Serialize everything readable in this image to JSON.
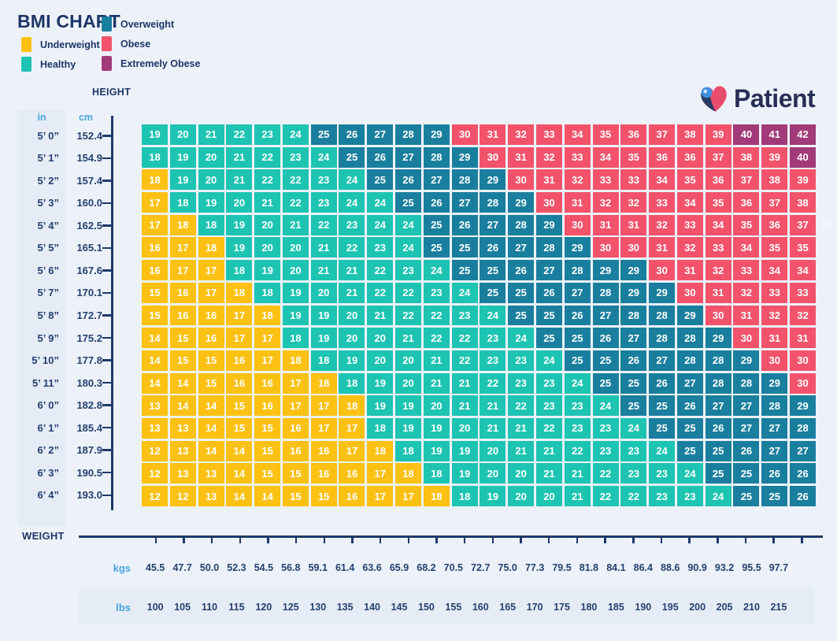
{
  "title": "BMI CHART",
  "logo": {
    "text": "Patient"
  },
  "labels": {
    "height": "HEIGHT",
    "weight": "WEIGHT",
    "in": "in",
    "cm": "cm",
    "kgs": "kgs",
    "lbs": "lbs"
  },
  "legend": [
    {
      "key": "underweight",
      "label": "Underweight",
      "color": "#fcc113"
    },
    {
      "key": "healthy",
      "label": "Healthy",
      "color": "#1dc4b2"
    },
    {
      "key": "overweight",
      "label": "Overweight",
      "color": "#1a7f9e"
    },
    {
      "key": "obese",
      "label": "Obese",
      "color": "#f2536b"
    },
    {
      "key": "extremely_obese",
      "label": "Extremely Obese",
      "color": "#a23a79"
    }
  ],
  "artifact": {
    "text": "38"
  },
  "chart_data": {
    "type": "heatmap",
    "value_name": "BMI",
    "x_axis": {
      "kgs": [
        "45.5",
        "47.7",
        "50.0",
        "52.3",
        "54.5",
        "56.8",
        "59.1",
        "61.4",
        "63.6",
        "65.9",
        "68.2",
        "70.5",
        "72.7",
        "75.0",
        "77.3",
        "79.5",
        "81.8",
        "84.1",
        "86.4",
        "88.6",
        "90.9",
        "93.2",
        "95.5",
        "97.7"
      ],
      "lbs": [
        "100",
        "105",
        "110",
        "115",
        "120",
        "125",
        "130",
        "135",
        "140",
        "145",
        "150",
        "155",
        "160",
        "165",
        "170",
        "175",
        "180",
        "185",
        "190",
        "195",
        "200",
        "205",
        "210",
        "215"
      ]
    },
    "band_order": [
      "underweight",
      "healthy",
      "overweight",
      "obese",
      "extremely_obese"
    ],
    "rows": [
      {
        "in": "5’ 0”",
        "cm": "152.4",
        "values": [
          19,
          20,
          21,
          22,
          23,
          24,
          25,
          26,
          27,
          28,
          29,
          30,
          31,
          32,
          33,
          34,
          35,
          36,
          37,
          38,
          39,
          40,
          41,
          42
        ],
        "bands": [
          0,
          6,
          5,
          10,
          3
        ]
      },
      {
        "in": "5’ 1”",
        "cm": "154.9",
        "values": [
          18,
          19,
          20,
          21,
          22,
          23,
          24,
          25,
          26,
          27,
          28,
          29,
          30,
          31,
          32,
          33,
          34,
          35,
          36,
          36,
          37,
          38,
          39,
          40
        ],
        "bands": [
          0,
          7,
          5,
          11,
          1
        ]
      },
      {
        "in": "5’ 2”",
        "cm": "157.4",
        "values": [
          18,
          19,
          20,
          21,
          22,
          22,
          23,
          24,
          25,
          26,
          27,
          28,
          29,
          30,
          31,
          32,
          33,
          33,
          34,
          35,
          36,
          37,
          38,
          39
        ],
        "bands": [
          1,
          7,
          5,
          11,
          0
        ]
      },
      {
        "in": "5’ 3”",
        "cm": "160.0",
        "values": [
          17,
          18,
          19,
          20,
          21,
          22,
          23,
          24,
          24,
          25,
          26,
          27,
          28,
          29,
          30,
          31,
          32,
          32,
          33,
          34,
          35,
          36,
          37,
          38
        ],
        "bands": [
          1,
          8,
          5,
          10,
          0
        ]
      },
      {
        "in": "5’ 4”",
        "cm": "162.5",
        "values": [
          17,
          18,
          18,
          19,
          20,
          21,
          22,
          23,
          24,
          24,
          25,
          26,
          27,
          28,
          29,
          30,
          31,
          31,
          32,
          33,
          34,
          35,
          36,
          37
        ],
        "bands": [
          2,
          8,
          5,
          9,
          0
        ]
      },
      {
        "in": "5’ 5”",
        "cm": "165.1",
        "values": [
          16,
          17,
          18,
          19,
          20,
          20,
          21,
          22,
          23,
          24,
          25,
          25,
          26,
          27,
          28,
          29,
          30,
          30,
          31,
          32,
          33,
          34,
          35,
          35
        ],
        "bands": [
          3,
          7,
          6,
          8,
          0
        ]
      },
      {
        "in": "5’ 6”",
        "cm": "167.6",
        "values": [
          16,
          17,
          17,
          18,
          19,
          20,
          21,
          21,
          22,
          23,
          24,
          25,
          25,
          26,
          27,
          28,
          29,
          29,
          30,
          31,
          32,
          33,
          34,
          34
        ],
        "bands": [
          3,
          8,
          7,
          6,
          0
        ]
      },
      {
        "in": "5’ 7”",
        "cm": "170.1",
        "values": [
          15,
          16,
          17,
          18,
          18,
          19,
          20,
          21,
          22,
          22,
          23,
          24,
          25,
          25,
          26,
          27,
          28,
          29,
          29,
          30,
          31,
          32,
          33,
          33
        ],
        "bands": [
          4,
          8,
          7,
          5,
          0
        ]
      },
      {
        "in": "5’ 8”",
        "cm": "172.7",
        "values": [
          15,
          16,
          16,
          17,
          18,
          19,
          19,
          20,
          21,
          22,
          22,
          23,
          24,
          25,
          25,
          26,
          27,
          28,
          28,
          29,
          30,
          31,
          32,
          32
        ],
        "bands": [
          5,
          8,
          7,
          4,
          0
        ]
      },
      {
        "in": "5’ 9”",
        "cm": "175.2",
        "values": [
          14,
          15,
          16,
          17,
          17,
          18,
          19,
          20,
          20,
          21,
          22,
          22,
          23,
          24,
          25,
          25,
          26,
          27,
          28,
          28,
          29,
          30,
          31,
          31
        ],
        "bands": [
          5,
          9,
          7,
          3,
          0
        ]
      },
      {
        "in": "5’ 10”",
        "cm": "177.8",
        "values": [
          14,
          15,
          15,
          16,
          17,
          18,
          18,
          19,
          20,
          20,
          21,
          22,
          23,
          23,
          24,
          25,
          25,
          26,
          27,
          28,
          28,
          29,
          30,
          30
        ],
        "bands": [
          6,
          9,
          7,
          2,
          0
        ]
      },
      {
        "in": "5’ 11”",
        "cm": "180.3",
        "values": [
          14,
          14,
          15,
          16,
          16,
          17,
          18,
          18,
          19,
          20,
          21,
          21,
          22,
          23,
          23,
          24,
          25,
          25,
          26,
          27,
          28,
          28,
          29,
          30
        ],
        "bands": [
          7,
          9,
          7,
          1,
          0
        ]
      },
      {
        "in": "6’ 0”",
        "cm": "182.8",
        "values": [
          13,
          14,
          14,
          15,
          16,
          17,
          17,
          18,
          19,
          19,
          20,
          21,
          21,
          22,
          23,
          23,
          24,
          25,
          25,
          26,
          27,
          27,
          28,
          29
        ],
        "bands": [
          8,
          9,
          7,
          0,
          0
        ]
      },
      {
        "in": "6’ 1”",
        "cm": "185.4",
        "values": [
          13,
          13,
          14,
          15,
          15,
          16,
          17,
          17,
          18,
          19,
          19,
          20,
          21,
          21,
          22,
          23,
          23,
          24,
          25,
          25,
          26,
          27,
          27,
          28
        ],
        "bands": [
          8,
          10,
          6,
          0,
          0
        ]
      },
      {
        "in": "6’ 2”",
        "cm": "187.9",
        "values": [
          12,
          13,
          14,
          14,
          15,
          16,
          16,
          17,
          18,
          18,
          19,
          19,
          20,
          21,
          21,
          22,
          23,
          23,
          24,
          25,
          25,
          26,
          27,
          27
        ],
        "bands": [
          9,
          10,
          5,
          0,
          0
        ]
      },
      {
        "in": "6’ 3”",
        "cm": "190.5",
        "values": [
          12,
          13,
          13,
          14,
          15,
          15,
          16,
          16,
          17,
          18,
          18,
          19,
          20,
          20,
          21,
          21,
          22,
          23,
          23,
          24,
          25,
          25,
          26,
          26
        ],
        "bands": [
          10,
          10,
          4,
          0,
          0
        ]
      },
      {
        "in": "6’ 4”",
        "cm": "193.0",
        "values": [
          12,
          12,
          13,
          14,
          14,
          15,
          15,
          16,
          17,
          17,
          18,
          18,
          19,
          20,
          20,
          21,
          22,
          22,
          23,
          23,
          24,
          25,
          25,
          26
        ],
        "bands": [
          11,
          10,
          3,
          0,
          0
        ]
      }
    ]
  }
}
